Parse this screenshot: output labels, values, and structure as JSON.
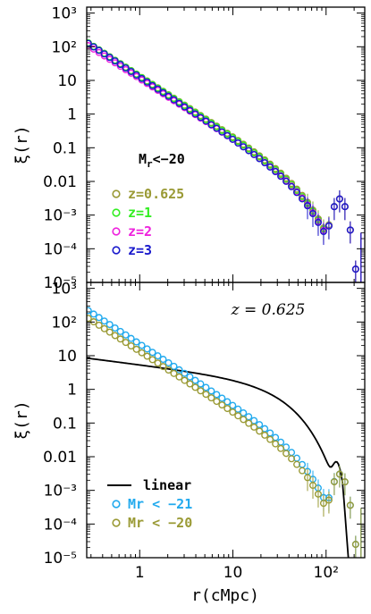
{
  "chart_data": [
    {
      "type": "scatter",
      "ylabel": "ξ(r)",
      "xlabel": "",
      "xscale": "log",
      "yscale": "log",
      "xlim": [
        0.27,
        260
      ],
      "ylim": [
        1e-05,
        1500
      ],
      "x_ticks": [
        "1",
        "10",
        "10²"
      ],
      "y_ticks": [
        "10⁻⁵",
        "10⁻⁴",
        "10⁻³",
        "0.01",
        "0.1",
        "1",
        "10",
        "10²",
        "10³"
      ],
      "annotation": "Mr<−20",
      "annotation_sub": "r",
      "legend_placement": "lower-left",
      "series": [
        {
          "name": "z=0.625",
          "color": "#9a9a35",
          "power_law": {
            "r0": 4.3,
            "gamma": 1.78
          },
          "cutoff": 60,
          "bao": true
        },
        {
          "name": "z=1",
          "color": "#33ee22",
          "power_law": {
            "r0": 4.2,
            "gamma": 1.8
          },
          "cutoff": 60,
          "bao": true
        },
        {
          "name": "z=2",
          "color": "#ee22dd",
          "power_law": {
            "r0": 3.9,
            "gamma": 1.78
          },
          "cutoff": 60,
          "bao": true
        },
        {
          "name": "z=3",
          "color": "#1a1acc",
          "power_law": {
            "r0": 4.0,
            "gamma": 1.82
          },
          "cutoff": 60,
          "bao": true
        }
      ]
    },
    {
      "type": "scatter",
      "ylabel": "ξ(r)",
      "xlabel": "r(cMpc)",
      "xscale": "log",
      "yscale": "log",
      "xlim": [
        0.27,
        260
      ],
      "ylim": [
        1e-05,
        1500
      ],
      "x_ticks": [
        "1",
        "10",
        "10²"
      ],
      "y_ticks": [
        "10⁻⁵",
        "10⁻⁴",
        "10⁻³",
        "0.01",
        "0.1",
        "1",
        "10",
        "10²",
        "10³"
      ],
      "annotation": "z = 0.625",
      "legend_placement": "lower-left",
      "series": [
        {
          "name": "linear",
          "color": "#000000",
          "kind": "line"
        },
        {
          "name": "Mr < −21",
          "color": "#22aaee",
          "kind": "points",
          "power_law": {
            "r0": 5.6,
            "gamma": 1.8
          }
        },
        {
          "name": "Mr < −20",
          "color": "#9a9a35",
          "kind": "points",
          "power_law": {
            "r0": 4.3,
            "gamma": 1.78
          }
        }
      ]
    }
  ]
}
